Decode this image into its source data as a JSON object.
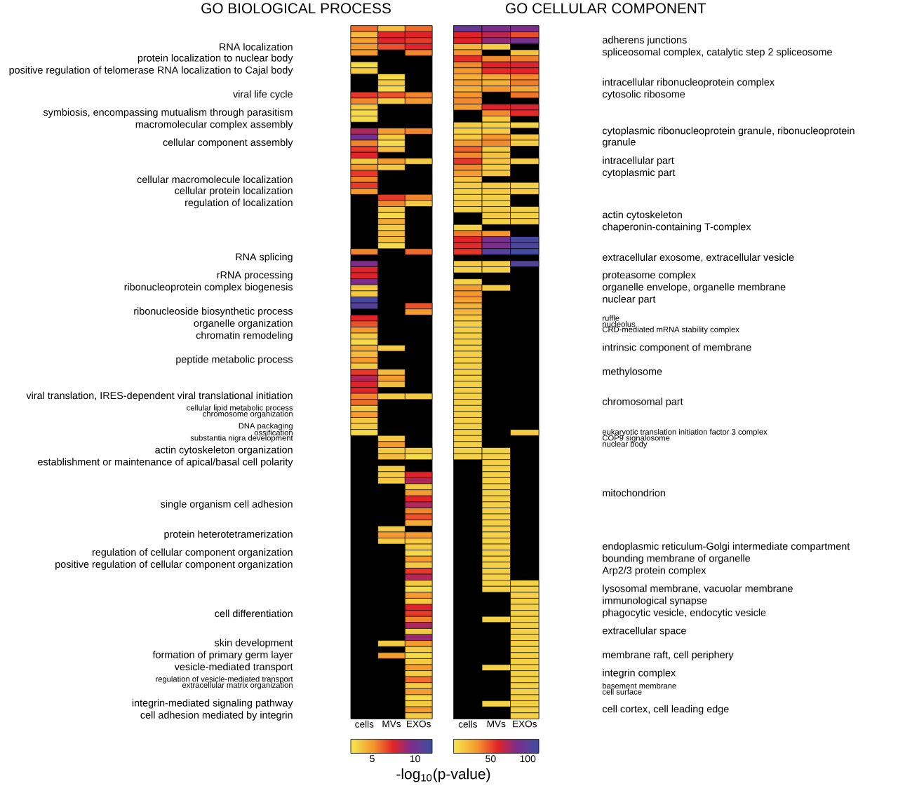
{
  "chart_data": [
    {
      "type": "heatmap",
      "title": "GO BIOLOGICAL PROCESS",
      "categories": [
        "cells",
        "MVs",
        "EXOs"
      ],
      "y_categories": [
        null,
        null,
        null,
        "RNA localization",
        null,
        "protein localization to nuclear body",
        null,
        "positive regulation of telomerase RNA localization to Cajal body",
        null,
        null,
        null,
        "viral life cycle",
        null,
        null,
        "symbiosis, encompassing mutualism through parasitism",
        null,
        "macromolecular complex assembly",
        null,
        null,
        "cellular component assembly",
        null,
        null,
        null,
        null,
        null,
        "cellular macromolecule localization",
        null,
        "cellular protein localization",
        null,
        "regulation of localization",
        null,
        null,
        null,
        null,
        null,
        null,
        null,
        null,
        "RNA splicing",
        null,
        null,
        "rRNA processing",
        null,
        "ribonucleoprotein complex biogenesis",
        null,
        null,
        null,
        "ribonucleoside biosynthetic process",
        null,
        "organelle organization",
        null,
        "chromatin remodeling",
        null,
        null,
        null,
        "peptide metabolic process",
        null,
        null,
        null,
        null,
        null,
        "viral translation, IRES-dependent viral translational initiation",
        null,
        "cellular lipid metabolic process",
        "chromosome organization",
        null,
        "DNA packaging",
        "ossification",
        "substantia nigra development",
        null,
        "actin cytoskeleton organization",
        null,
        "establishment or maintenance of apical/basal cell polarity",
        null,
        null,
        null,
        null,
        null,
        null,
        "single organism cell adhesion",
        null,
        null,
        null,
        null,
        "protein heterotetramerization",
        null,
        null,
        "regulation of cellular component organization",
        null,
        "positive regulation of cellular component organization",
        null,
        null,
        null,
        null,
        null,
        null,
        null,
        "cell differentiation",
        null,
        null,
        null,
        null,
        "skin development",
        null,
        "formation of primary germ layer",
        null,
        "vesicle-mediated transport",
        null,
        "regulation of vesicle-mediated transport",
        "extracellular matrix organization",
        null,
        null,
        "integrin-mediated signaling pathway",
        null,
        "cell adhesion mediated by integrin"
      ],
      "cells": [
        [
          6,
          4,
          6
        ],
        [
          4,
          7.5,
          7.5
        ],
        [
          5,
          7.5,
          7
        ],
        [
          5,
          6.5,
          7.5
        ],
        [
          5,
          null,
          5.5
        ],
        [
          null,
          null,
          null
        ],
        [
          3,
          null,
          null
        ],
        [
          3.5,
          null,
          null
        ],
        [
          null,
          3,
          null
        ],
        [
          null,
          3.5,
          null
        ],
        [
          null,
          3,
          null
        ],
        [
          7,
          6.5,
          5.5
        ],
        [
          5.5,
          3.5,
          5
        ],
        [
          3.5,
          null,
          null
        ],
        [
          3,
          null,
          null
        ],
        [
          3,
          null,
          null
        ],
        [
          null,
          null,
          null
        ],
        [
          8.5,
          5,
          5.5
        ],
        [
          10,
          3.5,
          null
        ],
        [
          5.5,
          3,
          null
        ],
        [
          7,
          4,
          null
        ],
        [
          7.5,
          null,
          null
        ],
        [
          3.5,
          5,
          3.5
        ],
        [
          5,
          3.5,
          null
        ],
        [
          7,
          null,
          null
        ],
        [
          5.5,
          null,
          null
        ],
        [
          7,
          null,
          null
        ],
        [
          5,
          null,
          null
        ],
        [
          null,
          7,
          5.5
        ],
        [
          null,
          5.5,
          3.5
        ],
        [
          null,
          3.5,
          null
        ],
        [
          null,
          3,
          null
        ],
        [
          null,
          4.5,
          null
        ],
        [
          null,
          3.5,
          null
        ],
        [
          null,
          4,
          null
        ],
        [
          null,
          4,
          null
        ],
        [
          null,
          3,
          null
        ],
        [
          5.5,
          null,
          6
        ],
        [
          null,
          null,
          null
        ],
        [
          9.5,
          null,
          null
        ],
        [
          7.5,
          null,
          null
        ],
        [
          7.5,
          null,
          null
        ],
        [
          9.5,
          null,
          null
        ],
        [
          3.5,
          null,
          null
        ],
        [
          3.5,
          null,
          null
        ],
        [
          11.5,
          null,
          null
        ],
        [
          11,
          null,
          6.5
        ],
        [
          null,
          null,
          5
        ],
        [
          7.5,
          null,
          null
        ],
        [
          6.5,
          null,
          null
        ],
        [
          5,
          null,
          null
        ],
        [
          3.5,
          null,
          null
        ],
        [
          3,
          null,
          null
        ],
        [
          4.5,
          3.5,
          null
        ],
        [
          4,
          null,
          null
        ],
        [
          5,
          null,
          null
        ],
        [
          3.5,
          null,
          null
        ],
        [
          7,
          4,
          null
        ],
        [
          8.5,
          5,
          null
        ],
        [
          7.5,
          4,
          null
        ],
        [
          7.5,
          null,
          null
        ],
        [
          5.5,
          3.5,
          3.5
        ],
        [
          6,
          null,
          null
        ],
        [
          3.5,
          null,
          null
        ],
        [
          5,
          null,
          null
        ],
        [
          3.5,
          null,
          null
        ],
        [
          3.5,
          null,
          null
        ],
        [
          3,
          null,
          null
        ],
        [
          null,
          3.5,
          null
        ],
        [
          null,
          5,
          null
        ],
        [
          null,
          3.5,
          3.5
        ],
        [
          null,
          4,
          3
        ],
        [
          null,
          null,
          null
        ],
        [
          null,
          3.5,
          null
        ],
        [
          null,
          3.5,
          7.5
        ],
        [
          null,
          3.5,
          8.5
        ],
        [
          null,
          null,
          3.5
        ],
        [
          null,
          null,
          5
        ],
        [
          null,
          null,
          7.5
        ],
        [
          null,
          null,
          8.5
        ],
        [
          null,
          null,
          5.5
        ],
        [
          null,
          null,
          6.5
        ],
        [
          null,
          null,
          4.5
        ],
        [
          null,
          3.5,
          null
        ],
        [
          null,
          5,
          5
        ],
        [
          null,
          3.5,
          3.5
        ],
        [
          null,
          null,
          3.5
        ],
        [
          null,
          null,
          3
        ],
        [
          null,
          null,
          5
        ],
        [
          null,
          null,
          3.5
        ],
        [
          null,
          null,
          7
        ],
        [
          null,
          null,
          8.5
        ],
        [
          null,
          null,
          3.5
        ],
        [
          null,
          null,
          3
        ],
        [
          null,
          null,
          5
        ],
        [
          null,
          null,
          3.5
        ],
        [
          null,
          null,
          7.5
        ],
        [
          null,
          null,
          7
        ],
        [
          null,
          null,
          5.5
        ],
        [
          null,
          null,
          8.5
        ],
        [
          null,
          null,
          3.5
        ],
        [
          null,
          null,
          9
        ],
        [
          null,
          3.5,
          5
        ],
        [
          null,
          null,
          3.5
        ],
        [
          null,
          5,
          3
        ],
        [
          null,
          null,
          3.5
        ],
        [
          null,
          null,
          5
        ],
        [
          null,
          null,
          3.5
        ],
        [
          null,
          null,
          6
        ],
        [
          null,
          null,
          3.5
        ],
        [
          null,
          null,
          5
        ],
        [
          null,
          null,
          3
        ],
        [
          null,
          null,
          3.5
        ],
        [
          null,
          null,
          5
        ],
        [
          null,
          null,
          3.5
        ]
      ],
      "clim": [
        2.5,
        12
      ],
      "cticks": [
        5,
        10
      ],
      "clabel": "-log$_{10}$(p-value)"
    },
    {
      "type": "heatmap",
      "title": "GO CELLULAR COMPONENT",
      "categories": [
        "cells",
        "MVs",
        "EXOs"
      ],
      "y_categories": [
        null,
        null,
        "adherens junctions",
        null,
        "spliceosomal complex, catalytic step 2 spliceosome",
        null,
        null,
        null,
        null,
        "intracellular ribonucleoprotein complex",
        null,
        "cytosolic ribosome",
        null,
        null,
        null,
        null,
        null,
        null,
        "cytoplasmic ribonucleoprotein granule, ribonucleoprotein granule",
        null,
        null,
        null,
        "intracellular part",
        null,
        "cytoplasmic part",
        null,
        null,
        null,
        null,
        null,
        null,
        "actin cytoskeleton",
        null,
        "chaperonin-containing T-complex",
        null,
        null,
        null,
        null,
        "extracellular exosome, extracellular vesicle",
        null,
        null,
        "proteasome complex",
        null,
        "organelle envelope, organelle membrane",
        null,
        "nuclear part",
        null,
        null,
        "ruffle",
        "nucleolus",
        "CRD-mediated mRNA stability complex",
        null,
        null,
        "intrinsic component of membrane",
        null,
        null,
        null,
        "methylosome",
        null,
        null,
        null,
        null,
        "chromosomal part",
        null,
        null,
        null,
        null,
        "eukaryotic translation initiation factor 3 complex",
        "COP9 signalosome",
        "nuclear body",
        null,
        null,
        null,
        null,
        null,
        null,
        null,
        "mitochondrion",
        null,
        null,
        null,
        null,
        null,
        null,
        null,
        null,
        "endoplasmic reticulum-Golgi intermediate compartment",
        null,
        "bounding membrane of organelle",
        null,
        "Arp2/3 protein complex",
        null,
        null,
        "lysosomal membrane, vacuolar membrane",
        null,
        "immunological synapse",
        null,
        "phagocytic vesicle, endocytic vesicle",
        null,
        null,
        "extracellular space",
        null,
        null,
        null,
        "membrane raft, cell periphery",
        null,
        null,
        "integrin complex",
        null,
        "basement membrane",
        "cell surface",
        null,
        null,
        "cell cortex, cell leading edge",
        null
      ],
      "cells": [
        [
          95,
          85,
          85
        ],
        [
          60,
          70,
          50
        ],
        [
          60,
          80,
          88
        ],
        [
          20,
          12,
          null
        ],
        [
          32,
          null,
          15
        ],
        [
          58,
          35,
          38
        ],
        [
          35,
          60,
          62
        ],
        [
          32,
          58,
          60
        ],
        [
          22,
          25,
          35
        ],
        [
          30,
          22,
          38
        ],
        [
          22,
          32,
          25
        ],
        [
          32,
          null,
          40
        ],
        [
          35,
          null,
          null
        ],
        [
          30,
          60,
          62
        ],
        [
          null,
          35,
          58
        ],
        [
          null,
          12,
          null
        ],
        [
          12,
          10,
          10
        ],
        [
          10,
          12,
          null
        ],
        [
          12,
          32,
          15
        ],
        [
          30,
          35,
          12
        ],
        [
          45,
          12,
          null
        ],
        [
          35,
          15,
          null
        ],
        [
          55,
          15,
          12
        ],
        [
          35,
          12,
          null
        ],
        [
          30,
          15,
          null
        ],
        [
          15,
          null,
          null
        ],
        [
          12,
          12,
          10
        ],
        [
          10,
          12,
          12
        ],
        [
          10,
          10,
          null
        ],
        [
          12,
          10,
          null
        ],
        [
          10,
          12,
          10
        ],
        [
          null,
          12,
          10
        ],
        [
          null,
          10,
          12
        ],
        [
          10,
          null,
          null
        ],
        [
          38,
          32,
          null
        ],
        [
          60,
          88,
          110
        ],
        [
          58,
          85,
          108
        ],
        [
          55,
          105,
          112
        ],
        [
          null,
          null,
          null
        ],
        [
          12,
          12,
          105
        ],
        [
          10,
          10,
          null
        ],
        [
          null,
          null,
          null
        ],
        [
          10,
          null,
          null
        ],
        [
          30,
          12,
          null
        ],
        [
          32,
          null,
          null
        ],
        [
          28,
          null,
          null
        ],
        [
          22,
          null,
          null
        ],
        [
          20,
          null,
          null
        ],
        [
          12,
          null,
          null
        ],
        [
          10,
          null,
          null
        ],
        [
          10,
          null,
          null
        ],
        [
          10,
          null,
          null
        ],
        [
          10,
          null,
          null
        ],
        [
          10,
          null,
          null
        ],
        [
          10,
          null,
          null
        ],
        [
          10,
          null,
          null
        ],
        [
          10,
          null,
          null
        ],
        [
          10,
          null,
          null
        ],
        [
          10,
          null,
          null
        ],
        [
          10,
          null,
          null
        ],
        [
          10,
          null,
          null
        ],
        [
          10,
          null,
          null
        ],
        [
          10,
          null,
          null
        ],
        [
          10,
          null,
          null
        ],
        [
          10,
          null,
          null
        ],
        [
          10,
          null,
          null
        ],
        [
          10,
          null,
          null
        ],
        [
          10,
          null,
          12
        ],
        [
          10,
          null,
          null
        ],
        [
          10,
          null,
          null
        ],
        [
          10,
          10,
          null
        ],
        [
          10,
          10,
          null
        ],
        [
          null,
          10,
          null
        ],
        [
          null,
          10,
          null
        ],
        [
          null,
          10,
          null
        ],
        [
          null,
          10,
          null
        ],
        [
          null,
          10,
          null
        ],
        [
          null,
          10,
          null
        ],
        [
          null,
          10,
          null
        ],
        [
          null,
          10,
          null
        ],
        [
          null,
          10,
          null
        ],
        [
          null,
          10,
          null
        ],
        [
          null,
          10,
          null
        ],
        [
          null,
          10,
          null
        ],
        [
          null,
          10,
          null
        ],
        [
          null,
          10,
          null
        ],
        [
          null,
          10,
          null
        ],
        [
          null,
          10,
          null
        ],
        [
          null,
          10,
          null
        ],
        [
          null,
          10,
          null
        ],
        [
          null,
          10,
          null
        ],
        [
          null,
          10,
          null
        ],
        [
          null,
          10,
          10
        ],
        [
          null,
          10,
          10
        ],
        [
          null,
          null,
          10
        ],
        [
          null,
          null,
          10
        ],
        [
          null,
          null,
          10
        ],
        [
          null,
          null,
          10
        ],
        [
          null,
          10,
          10
        ],
        [
          null,
          null,
          10
        ],
        [
          null,
          null,
          10
        ],
        [
          null,
          null,
          10
        ],
        [
          null,
          null,
          10
        ],
        [
          null,
          null,
          10
        ],
        [
          null,
          null,
          10
        ],
        [
          null,
          null,
          10
        ],
        [
          null,
          10,
          10
        ],
        [
          null,
          null,
          10
        ],
        [
          null,
          null,
          10
        ],
        [
          null,
          null,
          10
        ],
        [
          null,
          null,
          10
        ],
        [
          null,
          null,
          10
        ],
        [
          null,
          10,
          10
        ],
        [
          null,
          null,
          10
        ],
        [
          null,
          null,
          10
        ]
      ],
      "clim": [
        0,
        115
      ],
      "cticks": [
        50,
        100
      ]
    }
  ]
}
